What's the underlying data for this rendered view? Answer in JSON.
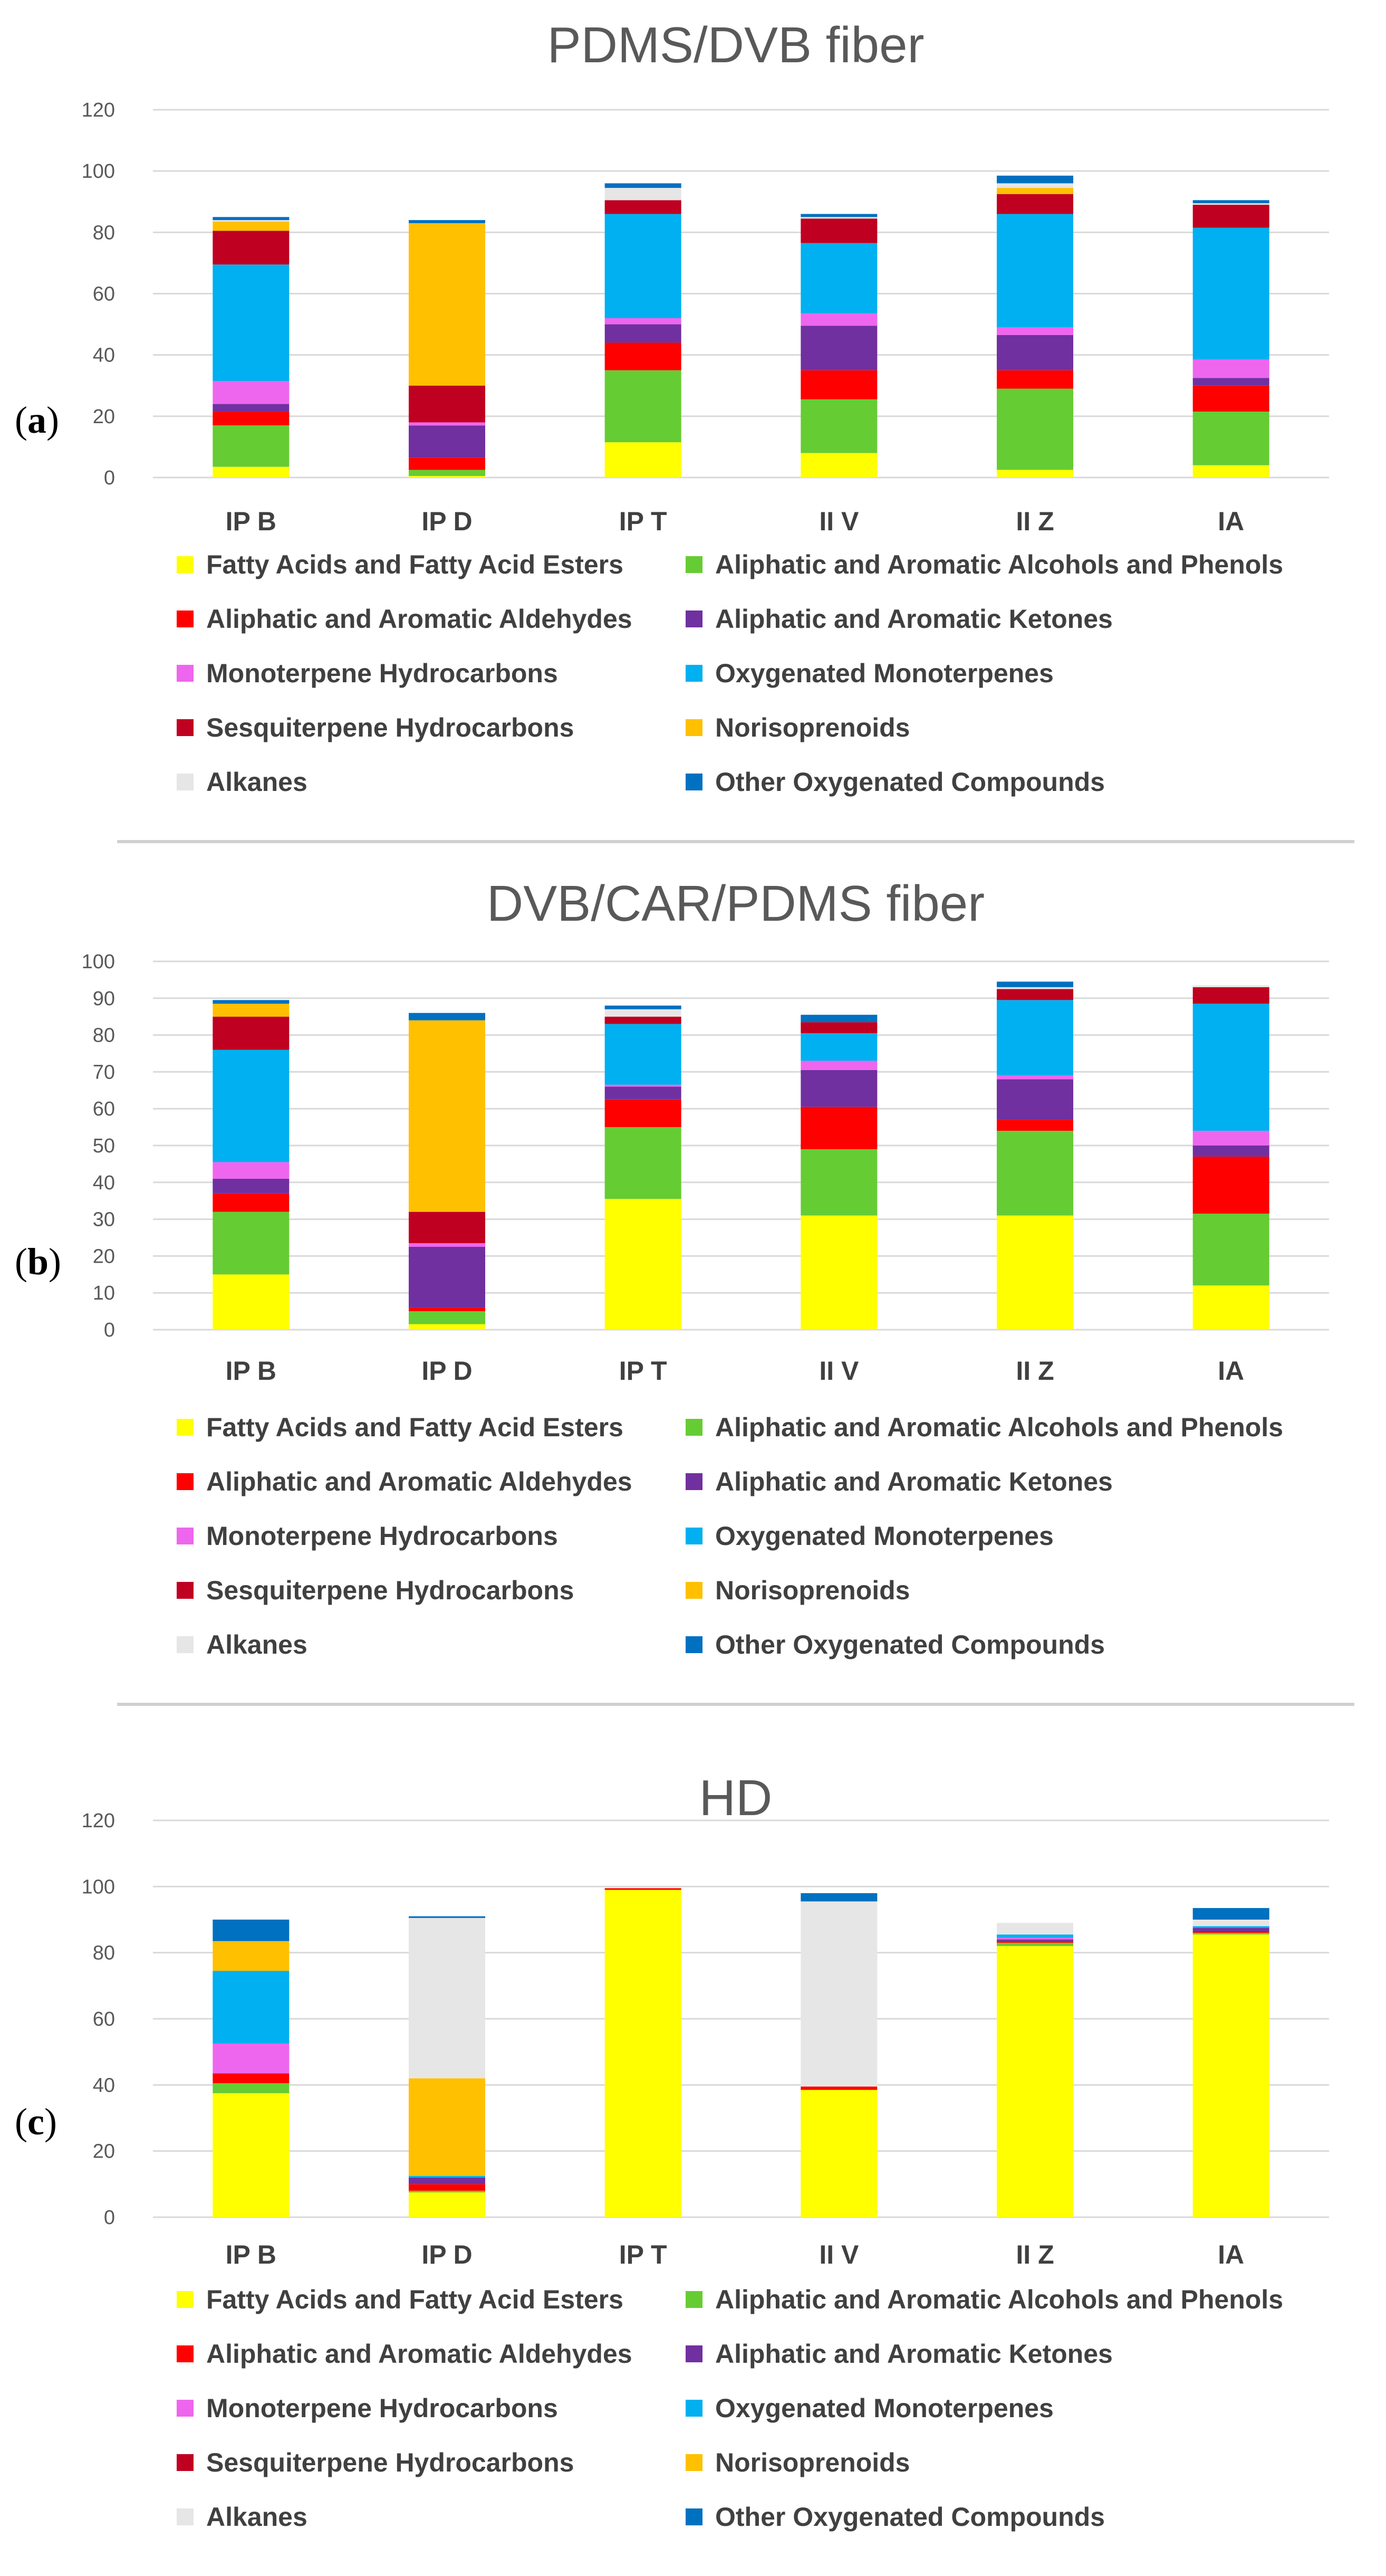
{
  "colors": {
    "fatty": "#FFFF00",
    "alcohols": "#66CC33",
    "aldehydes": "#FF0000",
    "ketones": "#7030A0",
    "monoterpene_hc": "#EE66EE",
    "oxygenated_monoterpenes": "#00B0F0",
    "sesquiterpene_hc": "#C00020",
    "norisoprenoids": "#FFC000",
    "alkanes": "#E6E6E6",
    "other_oxygenated": "#0070C0",
    "gridline": "#D9D9D9",
    "axis_text": "#595959"
  },
  "legend_entries": [
    "Fatty Acids and Fatty Acid Esters",
    "Aliphatic and Aromatic Alcohols and Phenols",
    "Aliphatic and Aromatic Aldehydes",
    "Aliphatic and Aromatic Ketones",
    "Monoterpene Hydrocarbons",
    "Oxygenated Monoterpenes",
    "Sesquiterpene Hydrocarbons",
    "Norisoprenoids",
    "Alkanes",
    "Other Oxygenated Compounds"
  ],
  "chart_data": [
    {
      "type": "bar",
      "stacked": true,
      "panel_label": "a",
      "title": "PDMS/DVB fiber",
      "xlabel": "",
      "ylabel": "",
      "categories": [
        "IP B",
        "IP D",
        "IP T",
        "II V",
        "II Z",
        "IA"
      ],
      "ylim": [
        0,
        120
      ],
      "yticks": [
        0,
        20,
        40,
        60,
        80,
        100,
        120
      ],
      "grid": true,
      "legend": "bottom",
      "series": [
        {
          "name": "Fatty Acids and Fatty Acid Esters",
          "color_key": "fatty",
          "values": [
            3.5,
            0.5,
            11.5,
            8,
            2.5,
            4
          ]
        },
        {
          "name": "Aliphatic and Aromatic Alcohols and Phenols",
          "color_key": "alcohols",
          "values": [
            13.5,
            2,
            23.5,
            17.5,
            26.5,
            17.5
          ]
        },
        {
          "name": "Aliphatic and Aromatic Aldehydes",
          "color_key": "aldehydes",
          "values": [
            4.5,
            4,
            9,
            9.5,
            6,
            8.5
          ]
        },
        {
          "name": "Aliphatic and Aromatic Ketones",
          "color_key": "ketones",
          "values": [
            2.5,
            10.5,
            6,
            14.5,
            11.5,
            2.5
          ]
        },
        {
          "name": "Monoterpene Hydrocarbons",
          "color_key": "monoterpene_hc",
          "values": [
            7.5,
            1,
            2,
            4,
            2.5,
            6
          ]
        },
        {
          "name": "Oxygenated Monoterpenes",
          "color_key": "oxygenated_monoterpenes",
          "values": [
            38,
            0,
            34,
            23,
            37,
            43
          ]
        },
        {
          "name": "Sesquiterpene Hydrocarbons",
          "color_key": "sesquiterpene_hc",
          "values": [
            11,
            12,
            4.5,
            8,
            6.5,
            7.5
          ]
        },
        {
          "name": "Norisoprenoids",
          "color_key": "norisoprenoids",
          "values": [
            3,
            53,
            0,
            0,
            2,
            0
          ]
        },
        {
          "name": "Alkanes",
          "color_key": "alkanes",
          "values": [
            0.5,
            0,
            4,
            0.5,
            1.5,
            0.5
          ]
        },
        {
          "name": "Other Oxygenated Compounds",
          "color_key": "other_oxygenated",
          "values": [
            1,
            1,
            1.5,
            1,
            2.5,
            1
          ]
        }
      ]
    },
    {
      "type": "bar",
      "stacked": true,
      "panel_label": "b",
      "title": "DVB/CAR/PDMS fiber",
      "xlabel": "",
      "ylabel": "",
      "categories": [
        "IP B",
        "IP D",
        "IP T",
        "II V",
        "II Z",
        "IA"
      ],
      "ylim": [
        0,
        100
      ],
      "yticks": [
        0,
        10,
        20,
        30,
        40,
        50,
        60,
        70,
        80,
        90,
        100
      ],
      "grid": true,
      "legend": "bottom",
      "series": [
        {
          "name": "Fatty Acids and Fatty Acid Esters",
          "color_key": "fatty",
          "values": [
            15,
            1.5,
            35.5,
            31,
            31,
            12
          ]
        },
        {
          "name": "Aliphatic and Aromatic Alcohols and Phenols",
          "color_key": "alcohols",
          "values": [
            17,
            3.5,
            19.5,
            18,
            23,
            19.5
          ]
        },
        {
          "name": "Aliphatic and Aromatic Aldehydes",
          "color_key": "aldehydes",
          "values": [
            5,
            1,
            7.5,
            11.5,
            3,
            15.5
          ]
        },
        {
          "name": "Aliphatic and Aromatic Ketones",
          "color_key": "ketones",
          "values": [
            4,
            16.5,
            3.5,
            10,
            11,
            3
          ]
        },
        {
          "name": "Monoterpene Hydrocarbons",
          "color_key": "monoterpene_hc",
          "values": [
            4.5,
            1,
            0.5,
            2.5,
            1,
            4
          ]
        },
        {
          "name": "Oxygenated Monoterpenes",
          "color_key": "oxygenated_monoterpenes",
          "values": [
            30.5,
            0,
            16.5,
            7.5,
            20.5,
            34.5
          ]
        },
        {
          "name": "Sesquiterpene Hydrocarbons",
          "color_key": "sesquiterpene_hc",
          "values": [
            9,
            8.5,
            2,
            3,
            3,
            4.5
          ]
        },
        {
          "name": "Norisoprenoids",
          "color_key": "norisoprenoids",
          "values": [
            3.5,
            52,
            0,
            0,
            0,
            0
          ]
        },
        {
          "name": "Alkanes",
          "color_key": "alkanes",
          "values": [
            0,
            0,
            2,
            0,
            0.5,
            0.5
          ]
        },
        {
          "name": "Other Oxygenated Compounds",
          "color_key": "other_oxygenated",
          "values": [
            1,
            2,
            1,
            2,
            1.5,
            0
          ]
        }
      ]
    },
    {
      "type": "bar",
      "stacked": true,
      "panel_label": "c",
      "title": "HD",
      "xlabel": "",
      "ylabel": "",
      "categories": [
        "IP B",
        "IP D",
        "IP T",
        "II V",
        "II Z",
        "IA"
      ],
      "ylim": [
        0,
        120
      ],
      "yticks": [
        0,
        20,
        40,
        60,
        80,
        100,
        120
      ],
      "grid": true,
      "legend": "bottom",
      "series": [
        {
          "name": "Fatty Acids and Fatty Acid Esters",
          "color_key": "fatty",
          "values": [
            37.5,
            7.5,
            99,
            38.5,
            82,
            85.5
          ]
        },
        {
          "name": "Aliphatic and Aromatic Alcohols and Phenols",
          "color_key": "alcohols",
          "values": [
            3,
            0.5,
            0,
            0,
            1,
            0.5
          ]
        },
        {
          "name": "Aliphatic and Aromatic Aldehydes",
          "color_key": "aldehydes",
          "values": [
            3,
            2,
            0.5,
            1,
            0.5,
            0.5
          ]
        },
        {
          "name": "Aliphatic and Aromatic Ketones",
          "color_key": "ketones",
          "values": [
            0,
            2,
            0,
            0,
            0.5,
            1
          ]
        },
        {
          "name": "Monoterpene Hydrocarbons",
          "color_key": "monoterpene_hc",
          "values": [
            9,
            0,
            0,
            0,
            0.5,
            0
          ]
        },
        {
          "name": "Oxygenated Monoterpenes",
          "color_key": "oxygenated_monoterpenes",
          "values": [
            22,
            0.5,
            0,
            0,
            1,
            0.5
          ]
        },
        {
          "name": "Sesquiterpene Hydrocarbons",
          "color_key": "sesquiterpene_hc",
          "values": [
            0,
            0,
            0,
            0,
            0,
            0
          ]
        },
        {
          "name": "Norisoprenoids",
          "color_key": "norisoprenoids",
          "values": [
            9,
            29.5,
            0,
            0,
            0,
            0
          ]
        },
        {
          "name": "Alkanes",
          "color_key": "alkanes",
          "values": [
            0,
            48.5,
            0,
            56,
            3.5,
            2
          ]
        },
        {
          "name": "Other Oxygenated Compounds",
          "color_key": "other_oxygenated",
          "values": [
            6.5,
            0.5,
            0,
            2.5,
            0,
            3.5
          ]
        }
      ]
    }
  ]
}
